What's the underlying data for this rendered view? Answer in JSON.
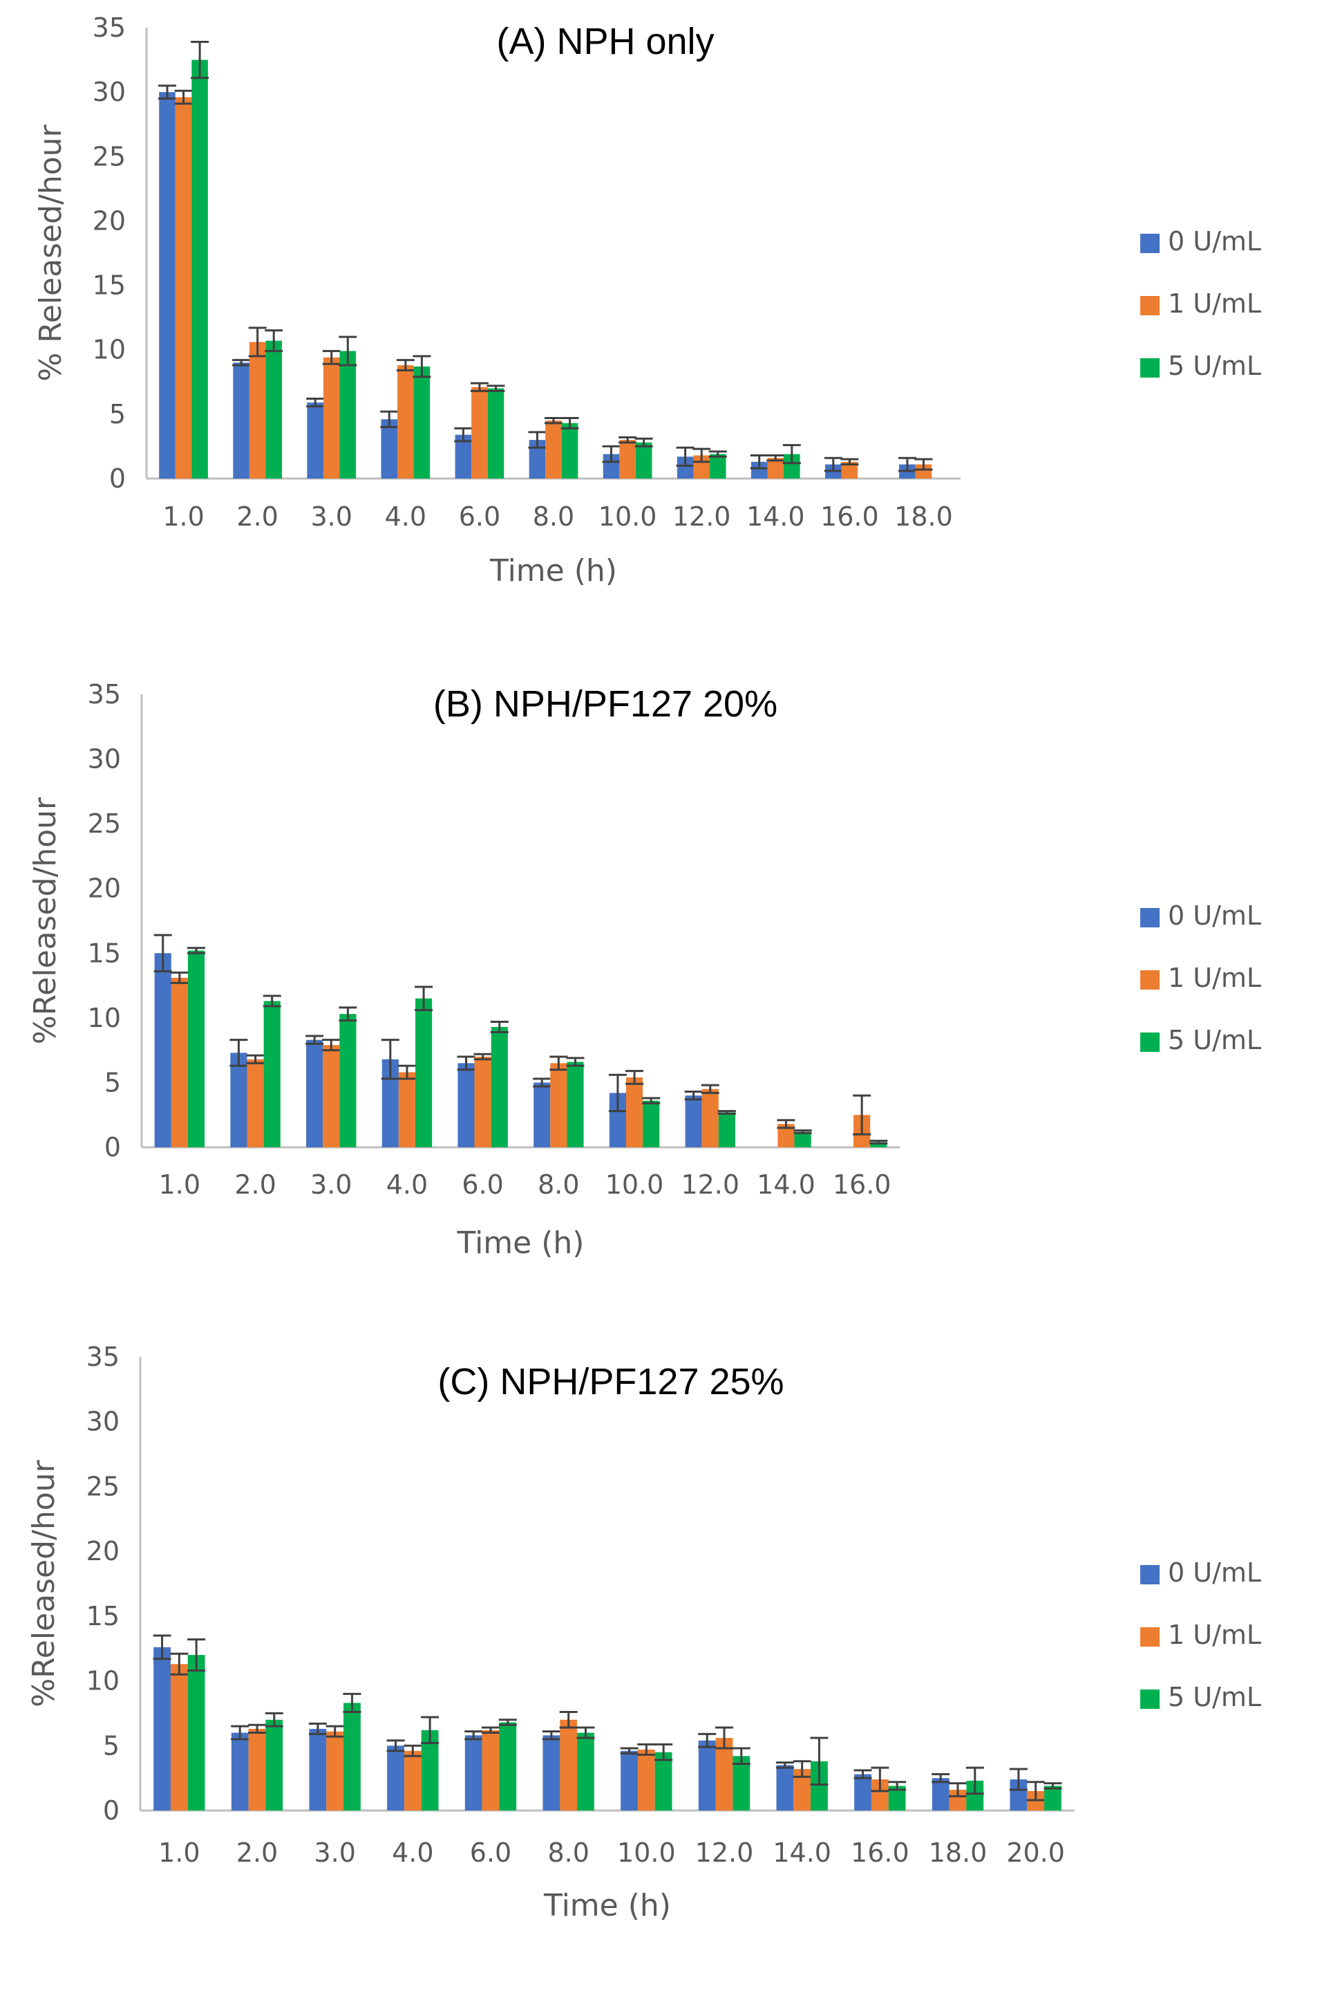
{
  "chart_data": [
    {
      "type": "bar",
      "title": "(A) NPH only",
      "xlabel": "Time (h)",
      "ylabel": "% Released/hour",
      "ylim": [
        0,
        35
      ],
      "yticks": [
        "0",
        "5",
        "10",
        "15",
        "20",
        "25",
        "30",
        "35"
      ],
      "categories": [
        "1.0",
        "2.0",
        "3.0",
        "4.0",
        "6.0",
        "8.0",
        "10.0",
        "12.0",
        "14.0",
        "16.0",
        "18.0"
      ],
      "legend_position": "right",
      "series": [
        {
          "name": "0 U/mL",
          "color": "#4472C4",
          "values": [
            30.0,
            9.0,
            5.9,
            4.6,
            3.4,
            3.0,
            1.9,
            1.7,
            1.3,
            1.1,
            1.1
          ],
          "errors": [
            0.5,
            0.2,
            0.3,
            0.6,
            0.5,
            0.6,
            0.6,
            0.7,
            0.5,
            0.5,
            0.5
          ]
        },
        {
          "name": "1 U/mL",
          "color": "#ED7D31",
          "values": [
            29.6,
            10.6,
            9.4,
            8.8,
            7.1,
            4.5,
            3.0,
            1.8,
            1.6,
            1.3,
            1.1
          ],
          "errors": [
            0.5,
            1.1,
            0.5,
            0.4,
            0.3,
            0.2,
            0.2,
            0.5,
            0.2,
            0.2,
            0.4
          ]
        },
        {
          "name": "5 U/mL",
          "color": "#00B050",
          "values": [
            32.5,
            10.7,
            9.9,
            8.7,
            7.0,
            4.3,
            2.8,
            1.9,
            1.9,
            null,
            null
          ],
          "errors": [
            1.4,
            0.8,
            1.1,
            0.8,
            0.2,
            0.4,
            0.3,
            0.2,
            0.7,
            null,
            null
          ]
        }
      ]
    },
    {
      "type": "bar",
      "title": "(B) NPH/PF127 20%",
      "xlabel": "Time (h)",
      "ylabel": "%Released/hour",
      "ylim": [
        0,
        35
      ],
      "yticks": [
        "0",
        "5",
        "10",
        "15",
        "20",
        "25",
        "30",
        "35"
      ],
      "categories": [
        "1.0",
        "2.0",
        "3.0",
        "4.0",
        "6.0",
        "8.0",
        "10.0",
        "12.0",
        "14.0",
        "16.0"
      ],
      "legend_position": "right",
      "series": [
        {
          "name": "0 U/mL",
          "color": "#4472C4",
          "values": [
            15.0,
            7.3,
            8.3,
            6.8,
            6.5,
            5.0,
            4.2,
            4.0,
            null,
            null
          ],
          "errors": [
            1.4,
            1.0,
            0.3,
            1.5,
            0.5,
            0.3,
            1.4,
            0.3,
            null,
            null
          ]
        },
        {
          "name": "1 U/mL",
          "color": "#ED7D31",
          "values": [
            13.1,
            6.8,
            7.9,
            5.8,
            7.0,
            6.5,
            5.4,
            4.5,
            1.8,
            2.5
          ],
          "errors": [
            0.4,
            0.3,
            0.4,
            0.5,
            0.2,
            0.5,
            0.5,
            0.3,
            0.3,
            1.5
          ]
        },
        {
          "name": "5 U/mL",
          "color": "#00B050",
          "values": [
            15.2,
            11.3,
            10.3,
            11.5,
            9.3,
            6.6,
            3.6,
            2.7,
            1.2,
            0.4
          ],
          "errors": [
            0.2,
            0.4,
            0.5,
            0.9,
            0.4,
            0.3,
            0.2,
            0.1,
            0.1,
            0.1
          ]
        }
      ]
    },
    {
      "type": "bar",
      "title": "(C) NPH/PF127 25%",
      "xlabel": "Time (h)",
      "ylabel": "%Released/hour",
      "ylim": [
        0,
        35
      ],
      "yticks": [
        "0",
        "5",
        "10",
        "15",
        "20",
        "25",
        "30",
        "35"
      ],
      "categories": [
        "1.0",
        "2.0",
        "3.0",
        "4.0",
        "6.0",
        "8.0",
        "10.0",
        "12.0",
        "14.0",
        "16.0",
        "18.0",
        "20.0"
      ],
      "legend_position": "right",
      "series": [
        {
          "name": "0 U/mL",
          "color": "#4472C4",
          "values": [
            12.6,
            6.0,
            6.3,
            5.0,
            5.8,
            5.8,
            4.6,
            5.4,
            3.5,
            2.8,
            2.5,
            2.4
          ],
          "errors": [
            0.9,
            0.5,
            0.4,
            0.4,
            0.3,
            0.3,
            0.2,
            0.5,
            0.2,
            0.3,
            0.3,
            0.8
          ]
        },
        {
          "name": "1 U/mL",
          "color": "#ED7D31",
          "values": [
            11.3,
            6.3,
            6.1,
            4.6,
            6.2,
            7.0,
            4.7,
            5.6,
            3.2,
            2.4,
            1.6,
            1.5
          ],
          "errors": [
            0.8,
            0.3,
            0.4,
            0.4,
            0.2,
            0.6,
            0.4,
            0.8,
            0.6,
            0.9,
            0.5,
            0.7
          ]
        },
        {
          "name": "5 U/mL",
          "color": "#00B050",
          "values": [
            12.0,
            7.0,
            8.3,
            6.2,
            6.8,
            6.0,
            4.5,
            4.2,
            3.8,
            1.9,
            2.3,
            1.9
          ],
          "errors": [
            1.2,
            0.5,
            0.7,
            1.0,
            0.2,
            0.4,
            0.6,
            0.6,
            1.8,
            0.3,
            1.0,
            0.2
          ]
        }
      ]
    }
  ]
}
